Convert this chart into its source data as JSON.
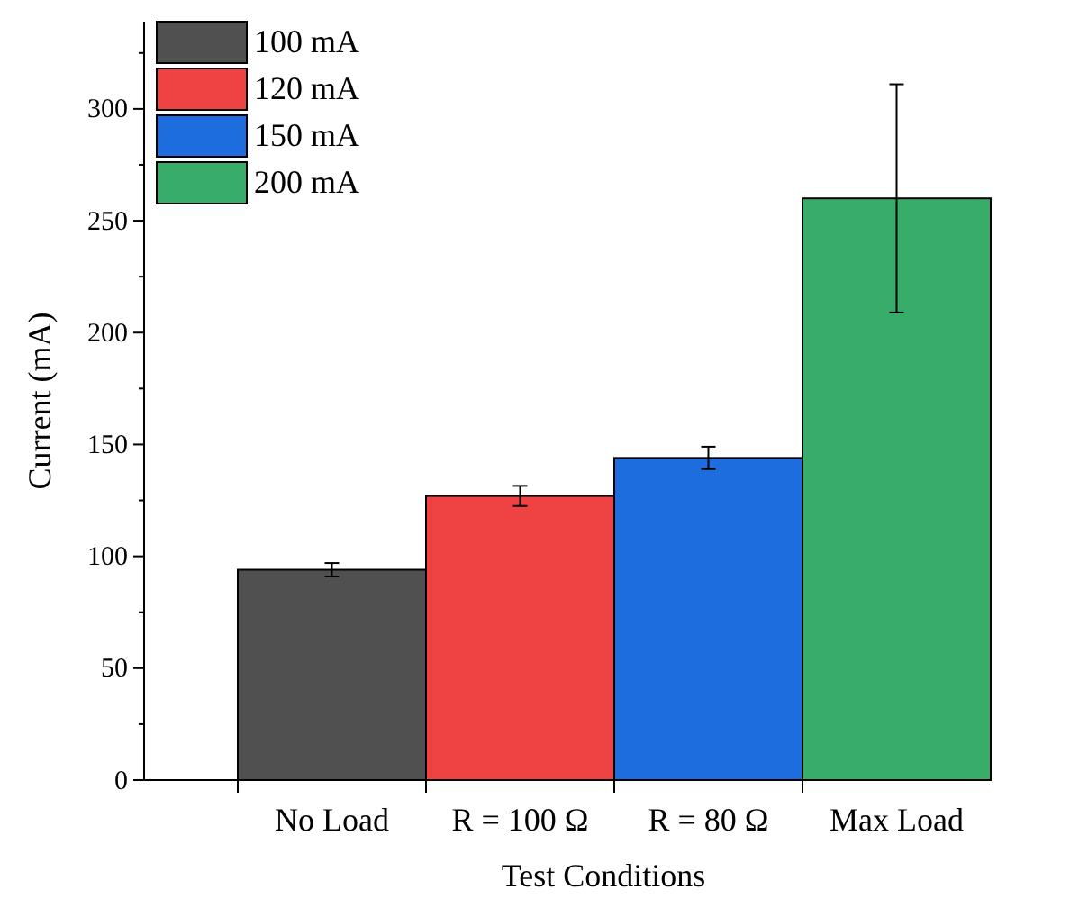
{
  "chart_data": {
    "type": "bar",
    "xlabel": "Test Conditions",
    "ylabel": "Current (mA)",
    "categories": [
      "No Load",
      "R = 100 Ω",
      "R = 80 Ω",
      "Max Load"
    ],
    "series": [
      {
        "name": "100 mA",
        "color": "#505050",
        "values": [
          94,
          null,
          null,
          null
        ],
        "errors": [
          3,
          null,
          null,
          null
        ]
      },
      {
        "name": "120 mA",
        "color": "#ef4343",
        "values": [
          null,
          127,
          null,
          null
        ],
        "errors": [
          null,
          4.5,
          null,
          null
        ]
      },
      {
        "name": "150 mA",
        "color": "#1e6ddf",
        "values": [
          null,
          null,
          144,
          null
        ],
        "errors": [
          null,
          null,
          5,
          null
        ]
      },
      {
        "name": "200 mA",
        "color": "#38ad6a",
        "values": [
          null,
          null,
          null,
          260
        ],
        "errors": [
          null,
          null,
          null,
          51
        ]
      }
    ],
    "ylim": [
      0,
      339
    ],
    "yticks": [
      0,
      {
        "value": 25,
        "label": null
      },
      50,
      {
        "value": 75,
        "label": null
      },
      100,
      {
        "value": 125,
        "label": null
      },
      150,
      {
        "value": 175,
        "label": null
      },
      200,
      {
        "value": 225,
        "label": null
      },
      250,
      {
        "value": 275,
        "label": null
      },
      300,
      {
        "value": 325,
        "label": null
      }
    ],
    "legend": "top left",
    "grid": false
  }
}
